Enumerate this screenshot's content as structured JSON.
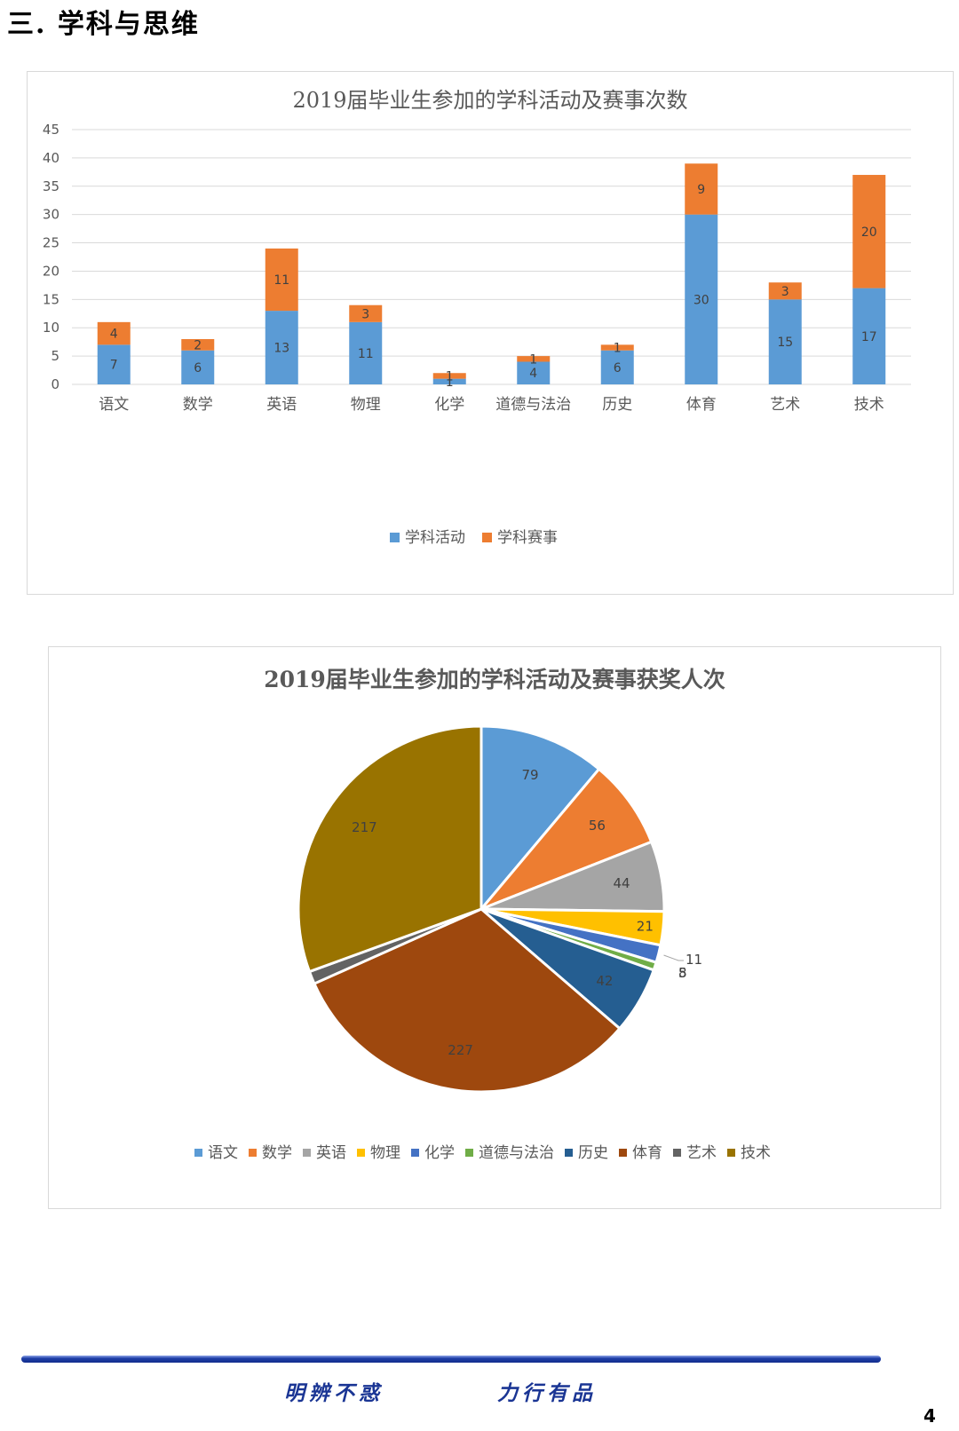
{
  "section_title": "三. 学科与思维",
  "footer": {
    "slogan_left": "明辨不惑",
    "slogan_right": "力行有品",
    "page_number": "4"
  },
  "colors": {
    "activity": "#5b9bd5",
    "competition": "#ed7d31",
    "gridline": "#d9d9d9",
    "text": "#595959"
  },
  "chart_data": [
    {
      "type": "bar",
      "stacked": true,
      "title": "2019届毕业生参加的学科活动及赛事次数",
      "categories": [
        "语文",
        "数学",
        "英语",
        "物理",
        "化学",
        "道德与法治",
        "历史",
        "体育",
        "艺术",
        "技术"
      ],
      "series": [
        {
          "name": "学科活动",
          "color": "#5b9bd5",
          "values": [
            7,
            6,
            13,
            11,
            1,
            4,
            6,
            30,
            15,
            17
          ]
        },
        {
          "name": "学科赛事",
          "color": "#ed7d31",
          "values": [
            4,
            2,
            11,
            3,
            1,
            1,
            1,
            9,
            3,
            20
          ]
        }
      ],
      "ylim": [
        0,
        45
      ],
      "yticks": [
        0,
        5,
        10,
        15,
        20,
        25,
        30,
        35,
        40,
        45
      ],
      "grid": true,
      "legend": "bottom"
    },
    {
      "type": "pie",
      "title": "2019届毕业生参加的学科活动及赛事获奖人次",
      "labels": [
        "语文",
        "数学",
        "英语",
        "物理",
        "化学",
        "道德与法治",
        "历史",
        "体育",
        "艺术",
        "技术"
      ],
      "values": [
        79,
        56,
        44,
        21,
        11,
        5,
        42,
        227,
        8,
        217
      ],
      "colors": [
        "#5b9bd5",
        "#ed7d31",
        "#a5a5a5",
        "#ffc000",
        "#4472c4",
        "#70ad47",
        "#255e91",
        "#9e480e",
        "#636363",
        "#997300"
      ],
      "legend": "bottom"
    }
  ]
}
